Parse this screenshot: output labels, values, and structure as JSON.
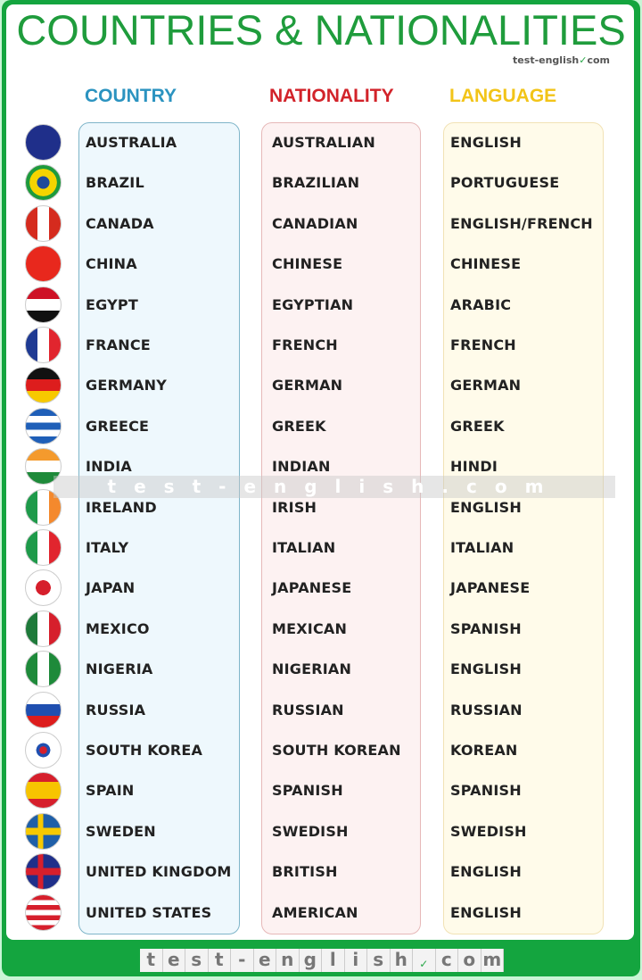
{
  "title": "COUNTRIES & NATIONALITIES",
  "brand": {
    "name": "test-english",
    "suffix": "com"
  },
  "headers": {
    "country": "COUNTRY",
    "nationality": "NATIONALITY",
    "language": "LANGUAGE"
  },
  "header_colors": {
    "country": "#2b93c0",
    "nationality": "#d2232a",
    "language": "#f2c418"
  },
  "watermark": "test-english.com",
  "footer_letters": [
    "t",
    "e",
    "s",
    "t",
    "-",
    "e",
    "n",
    "g",
    "l",
    "i",
    "s",
    "h",
    "✓",
    "c",
    "o",
    "m"
  ],
  "rows": [
    {
      "country": "AUSTRALIA",
      "nationality": "AUSTRALIAN",
      "language": "ENGLISH",
      "flag": "australia-flag",
      "colors": [
        "#1f2f8a",
        "#1f2f8a"
      ],
      "dir": "h"
    },
    {
      "country": "BRAZIL",
      "nationality": "BRAZILIAN",
      "language": "PORTUGUESE",
      "flag": "brazil-flag",
      "colors": [
        "#1e9a3c",
        "#f5d400",
        "#1e4a9a",
        "#f5d400",
        "#1e9a3c"
      ],
      "dir": "r"
    },
    {
      "country": "CANADA",
      "nationality": "CANADIAN",
      "language": "ENGLISH/FRENCH",
      "flag": "canada-flag",
      "colors": [
        "#d52b1e",
        "#ffffff",
        "#d52b1e"
      ],
      "dir": "v"
    },
    {
      "country": "CHINA",
      "nationality": "CHINESE",
      "language": "CHINESE",
      "flag": "china-flag",
      "colors": [
        "#e8281d",
        "#e8281d"
      ],
      "dir": "h"
    },
    {
      "country": "EGYPT",
      "nationality": "EGYPTIAN",
      "language": "ARABIC",
      "flag": "egypt-flag",
      "colors": [
        "#ce1126",
        "#ffffff",
        "#111111"
      ],
      "dir": "h"
    },
    {
      "country": "FRANCE",
      "nationality": "FRENCH",
      "language": "FRENCH",
      "flag": "france-flag",
      "colors": [
        "#1f3a93",
        "#ffffff",
        "#e1252e"
      ],
      "dir": "v"
    },
    {
      "country": "GERMANY",
      "nationality": "GERMAN",
      "language": "GERMAN",
      "flag": "germany-flag",
      "colors": [
        "#111111",
        "#dd1d1d",
        "#f7c900"
      ],
      "dir": "h"
    },
    {
      "country": "GREECE",
      "nationality": "GREEK",
      "language": "GREEK",
      "flag": "greece-flag",
      "colors": [
        "#1f5fb8",
        "#ffffff",
        "#1f5fb8",
        "#ffffff",
        "#1f5fb8"
      ],
      "dir": "h"
    },
    {
      "country": "INDIA",
      "nationality": "INDIAN",
      "language": "HINDI",
      "flag": "india-flag",
      "colors": [
        "#f49a2d",
        "#ffffff",
        "#1e8a3a"
      ],
      "dir": "h"
    },
    {
      "country": "IRELAND",
      "nationality": "IRISH",
      "language": "ENGLISH",
      "flag": "ireland-flag",
      "colors": [
        "#1e9a4a",
        "#ffffff",
        "#f4892d"
      ],
      "dir": "v"
    },
    {
      "country": "ITALY",
      "nationality": "ITALIAN",
      "language": "ITALIAN",
      "flag": "italy-flag",
      "colors": [
        "#1e9a4a",
        "#ffffff",
        "#e1252e"
      ],
      "dir": "v"
    },
    {
      "country": "JAPAN",
      "nationality": "JAPANESE",
      "language": "JAPANESE",
      "flag": "japan-flag",
      "colors": [
        "#d61f2c",
        "#ffffff"
      ],
      "dir": "c"
    },
    {
      "country": "MEXICO",
      "nationality": "MEXICAN",
      "language": "SPANISH",
      "flag": "mexico-flag",
      "colors": [
        "#1e7a3a",
        "#ffffff",
        "#d61f2c"
      ],
      "dir": "v"
    },
    {
      "country": "NIGERIA",
      "nationality": "NIGERIAN",
      "language": "ENGLISH",
      "flag": "nigeria-flag",
      "colors": [
        "#1e8a3a",
        "#ffffff",
        "#1e8a3a"
      ],
      "dir": "v"
    },
    {
      "country": "RUSSIA",
      "nationality": "RUSSIAN",
      "language": "RUSSIAN",
      "flag": "russia-flag",
      "colors": [
        "#ffffff",
        "#1f4fb0",
        "#dd1d1d"
      ],
      "dir": "h"
    },
    {
      "country": "SOUTH KOREA",
      "nationality": "SOUTH KOREAN",
      "language": "KOREAN",
      "flag": "south-korea-flag",
      "colors": [
        "#d61f2c",
        "#1f4fb0",
        "#ffffff"
      ],
      "dir": "k"
    },
    {
      "country": "SPAIN",
      "nationality": "SPANISH",
      "language": "SPANISH",
      "flag": "spain-flag",
      "colors": [
        "#d61f2c",
        "#f7c400",
        "#f7c400",
        "#d61f2c"
      ],
      "dir": "h"
    },
    {
      "country": "SWEDEN",
      "nationality": "SWEDISH",
      "language": "SWEDISH",
      "flag": "sweden-flag",
      "colors": [
        "#1f5fa8",
        "#f7c900"
      ],
      "dir": "x"
    },
    {
      "country": "UNITED KINGDOM",
      "nationality": "BRITISH",
      "language": "ENGLISH",
      "flag": "uk-flag",
      "colors": [
        "#1f2f8a",
        "#d61f2c",
        "#ffffff"
      ],
      "dir": "x"
    },
    {
      "country": "UNITED STATES",
      "nationality": "AMERICAN",
      "language": "ENGLISH",
      "flag": "usa-flag",
      "colors": [
        "#d61f2c",
        "#ffffff",
        "#d61f2c",
        "#ffffff",
        "#d61f2c",
        "#ffffff",
        "#d61f2c"
      ],
      "dir": "h"
    }
  ]
}
